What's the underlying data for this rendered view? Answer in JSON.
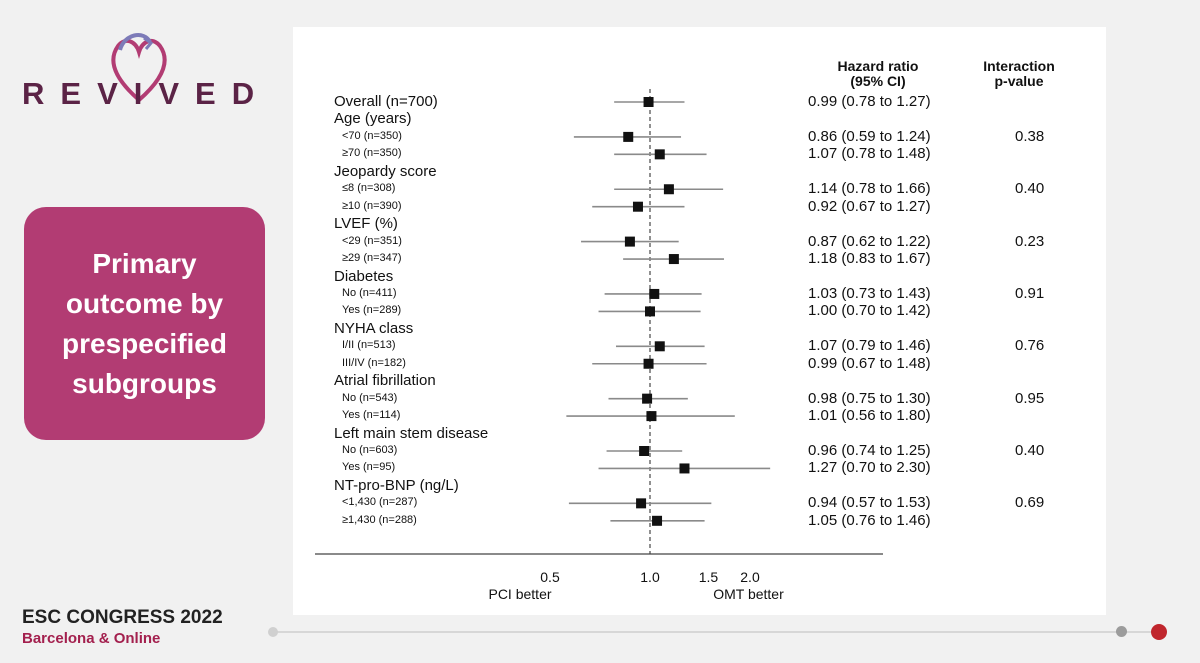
{
  "brand": {
    "logo_text": "REVIVED"
  },
  "side_panel": {
    "text": "Primary\noutcome by\nprespecified\nsubgroups"
  },
  "headers": {
    "hazard_ratio": "Hazard ratio\n(95% CI)",
    "interaction": "Interaction\np-value"
  },
  "footer": {
    "title": "ESC CONGRESS 2022",
    "subtitle": "Barcelona & Online"
  },
  "colors": {
    "brand": "#5b2346",
    "accent": "#b23c73",
    "footer_accent": "#a3204e",
    "marker": "#111111",
    "ci_line": "#8a8a8a"
  },
  "chart_data": {
    "type": "forest",
    "xscale": "log",
    "xlim": [
      0.3,
      3.2
    ],
    "reference_line": 1.0,
    "xticks": [
      {
        "value": 0.5,
        "label": "0.5"
      },
      {
        "value": 1.0,
        "label": "1.0"
      },
      {
        "value": 1.5,
        "label": "1.5"
      },
      {
        "value": 2.0,
        "label": "2.0"
      }
    ],
    "x_left_label": "PCI better",
    "x_right_label": "OMT better",
    "rows": [
      {
        "kind": "overall",
        "label": "Overall (n=700)",
        "hr": 0.99,
        "lo": 0.78,
        "hi": 1.27,
        "hr_text": "0.99 (0.78 to 1.27)"
      },
      {
        "kind": "group",
        "label": "Age (years)"
      },
      {
        "kind": "sub",
        "label": "<70 (n=350)",
        "hr": 0.86,
        "lo": 0.59,
        "hi": 1.24,
        "hr_text": "0.86 (0.59 to 1.24)",
        "p": "0.38"
      },
      {
        "kind": "sub",
        "label": "≥70 (n=350)",
        "hr": 1.07,
        "lo": 0.78,
        "hi": 1.48,
        "hr_text": "1.07 (0.78 to 1.48)"
      },
      {
        "kind": "group",
        "label": "Jeopardy score"
      },
      {
        "kind": "sub",
        "label": "≤8 (n=308)",
        "hr": 1.14,
        "lo": 0.78,
        "hi": 1.66,
        "hr_text": "1.14 (0.78 to 1.66)",
        "p": "0.40"
      },
      {
        "kind": "sub",
        "label": "≥10 (n=390)",
        "hr": 0.92,
        "lo": 0.67,
        "hi": 1.27,
        "hr_text": "0.92 (0.67 to 1.27)"
      },
      {
        "kind": "group",
        "label": "LVEF (%)"
      },
      {
        "kind": "sub",
        "label": "<29 (n=351)",
        "hr": 0.87,
        "lo": 0.62,
        "hi": 1.22,
        "hr_text": "0.87 (0.62 to 1.22)",
        "p": "0.23"
      },
      {
        "kind": "sub",
        "label": "≥29 (n=347)",
        "hr": 1.18,
        "lo": 0.83,
        "hi": 1.67,
        "hr_text": "1.18 (0.83 to 1.67)"
      },
      {
        "kind": "group",
        "label": "Diabetes"
      },
      {
        "kind": "sub",
        "label": "No (n=411)",
        "hr": 1.03,
        "lo": 0.73,
        "hi": 1.43,
        "hr_text": "1.03 (0.73 to 1.43)",
        "p": "0.91"
      },
      {
        "kind": "sub",
        "label": "Yes (n=289)",
        "hr": 1.0,
        "lo": 0.7,
        "hi": 1.42,
        "hr_text": "1.00 (0.70 to 1.42)"
      },
      {
        "kind": "group",
        "label": "NYHA class"
      },
      {
        "kind": "sub",
        "label": "I/II (n=513)",
        "hr": 1.07,
        "lo": 0.79,
        "hi": 1.46,
        "hr_text": "1.07 (0.79 to 1.46)",
        "p": "0.76"
      },
      {
        "kind": "sub",
        "label": "III/IV (n=182)",
        "hr": 0.99,
        "lo": 0.67,
        "hi": 1.48,
        "hr_text": "0.99 (0.67 to 1.48)"
      },
      {
        "kind": "group",
        "label": "Atrial fibrillation"
      },
      {
        "kind": "sub",
        "label": "No (n=543)",
        "hr": 0.98,
        "lo": 0.75,
        "hi": 1.3,
        "hr_text": "0.98 (0.75 to 1.30)",
        "p": "0.95"
      },
      {
        "kind": "sub",
        "label": "Yes (n=114)",
        "hr": 1.01,
        "lo": 0.56,
        "hi": 1.8,
        "hr_text": "1.01 (0.56 to 1.80)"
      },
      {
        "kind": "group",
        "label": "Left main stem disease"
      },
      {
        "kind": "sub",
        "label": "No (n=603)",
        "hr": 0.96,
        "lo": 0.74,
        "hi": 1.25,
        "hr_text": "0.96 (0.74 to 1.25)",
        "p": "0.40"
      },
      {
        "kind": "sub",
        "label": "Yes (n=95)",
        "hr": 1.27,
        "lo": 0.7,
        "hi": 2.3,
        "hr_text": "1.27 (0.70 to 2.30)"
      },
      {
        "kind": "group",
        "label": "NT-pro-BNP (ng/L)"
      },
      {
        "kind": "sub",
        "label": "<1,430 (n=287)",
        "hr": 0.94,
        "lo": 0.57,
        "hi": 1.53,
        "hr_text": "0.94 (0.57 to 1.53)",
        "p": "0.69"
      },
      {
        "kind": "sub",
        "label": "≥1,430 (n=288)",
        "hr": 1.05,
        "lo": 0.76,
        "hi": 1.46,
        "hr_text": "1.05 (0.76 to 1.46)"
      }
    ]
  }
}
